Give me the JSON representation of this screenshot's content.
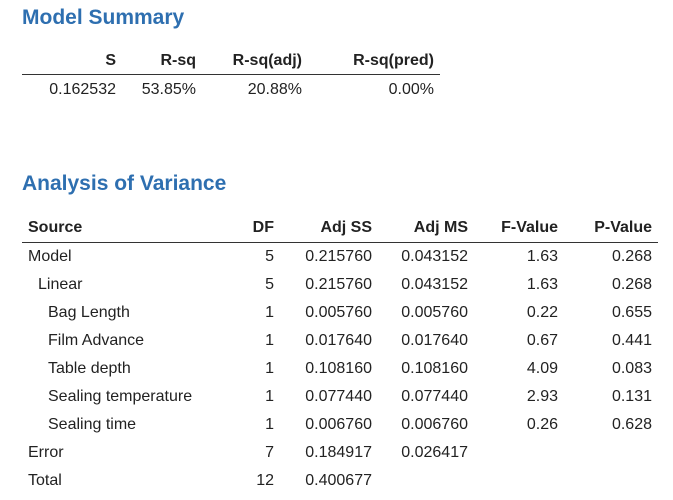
{
  "model_summary": {
    "title": "Model Summary",
    "headers": [
      "S",
      "R-sq",
      "R-sq(adj)",
      "R-sq(pred)"
    ],
    "rows": [
      [
        "0.162532",
        "53.85%",
        "20.88%",
        "0.00%"
      ]
    ]
  },
  "anova": {
    "title": "Analysis of Variance",
    "headers": [
      "Source",
      "DF",
      "Adj SS",
      "Adj MS",
      "F-Value",
      "P-Value"
    ],
    "rows": [
      [
        "Model",
        "5",
        "0.215760",
        "0.043152",
        "1.63",
        "0.268"
      ],
      [
        "Linear",
        "5",
        "0.215760",
        "0.043152",
        "1.63",
        "0.268"
      ],
      [
        "Bag Length",
        "1",
        "0.005760",
        "0.005760",
        "0.22",
        "0.655"
      ],
      [
        "Film Advance",
        "1",
        "0.017640",
        "0.017640",
        "0.67",
        "0.441"
      ],
      [
        "Table depth",
        "1",
        "0.108160",
        "0.108160",
        "4.09",
        "0.083"
      ],
      [
        "Sealing temperature",
        "1",
        "0.077440",
        "0.077440",
        "2.93",
        "0.131"
      ],
      [
        "Sealing time",
        "1",
        "0.006760",
        "0.006760",
        "0.26",
        "0.628"
      ],
      [
        "Error",
        "7",
        "0.184917",
        "0.026417"
      ],
      [
        "Total",
        "12",
        "0.400677"
      ]
    ]
  }
}
